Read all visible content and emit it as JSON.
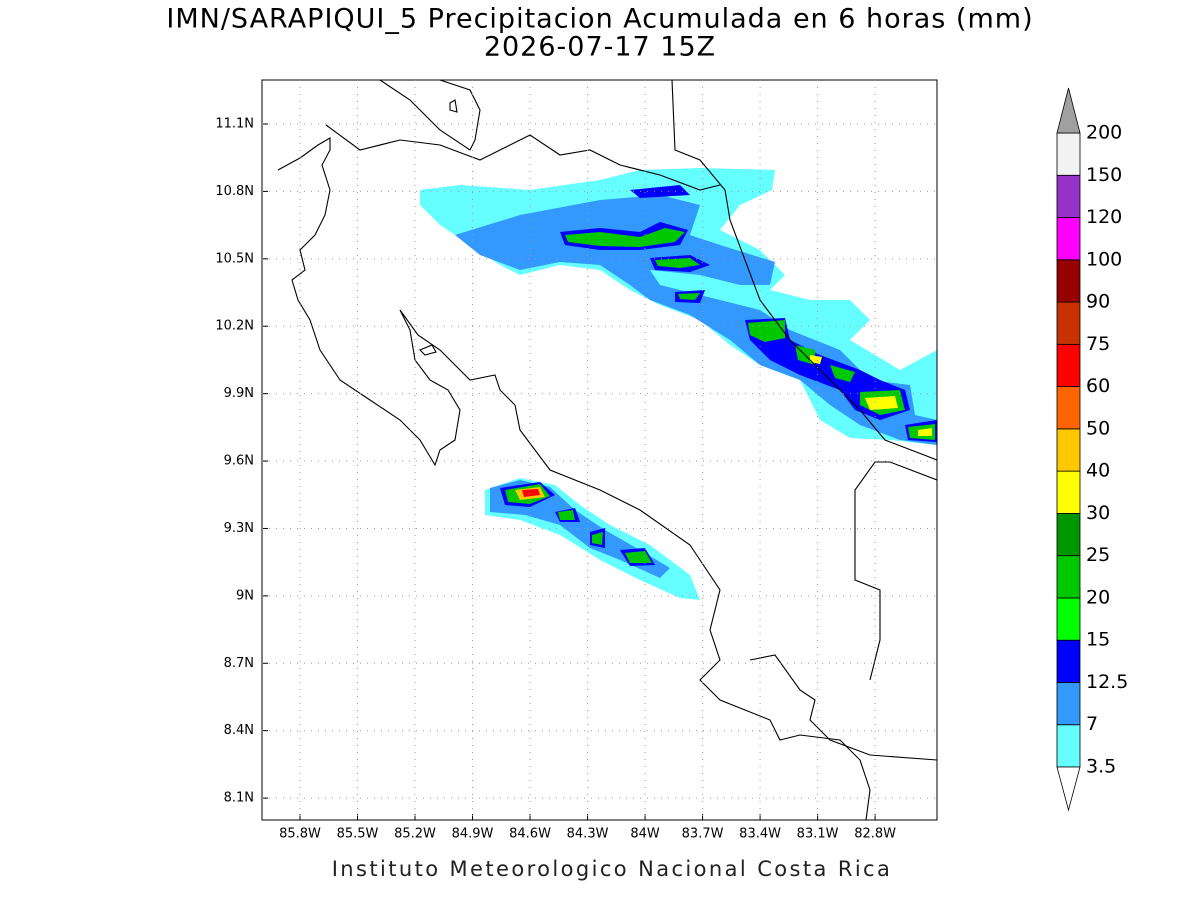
{
  "title": "IMN/SARAPIQUI_5 Precipitacion Acumulada en 6 horas (mm)",
  "subtitle": "2026-07-17 15Z",
  "footer": "Instituto Meteorologico Nacional Costa Rica",
  "map": {
    "lat_ticks": [
      {
        "value": 11.1,
        "label": "11.1N"
      },
      {
        "value": 10.8,
        "label": "10.8N"
      },
      {
        "value": 10.5,
        "label": "10.5N"
      },
      {
        "value": 10.2,
        "label": "10.2N"
      },
      {
        "value": 9.9,
        "label": "9.9N"
      },
      {
        "value": 9.6,
        "label": "9.6N"
      },
      {
        "value": 9.3,
        "label": "9.3N"
      },
      {
        "value": 9,
        "label": "9N"
      },
      {
        "value": 8.7,
        "label": "8.7N"
      },
      {
        "value": 8.4,
        "label": "8.4N"
      },
      {
        "value": 8.1,
        "label": "8.1N"
      }
    ],
    "lon_ticks": [
      {
        "value": -85.8,
        "label": "85.8W"
      },
      {
        "value": -85.5,
        "label": "85.5W"
      },
      {
        "value": -85.2,
        "label": "85.2W"
      },
      {
        "value": -84.9,
        "label": "84.9W"
      },
      {
        "value": -84.6,
        "label": "84.6W"
      },
      {
        "value": -84.3,
        "label": "84.3W"
      },
      {
        "value": -84,
        "label": "84W"
      },
      {
        "value": -83.7,
        "label": "83.7W"
      },
      {
        "value": -83.4,
        "label": "83.4W"
      },
      {
        "value": -83.1,
        "label": "83.1W"
      },
      {
        "value": -82.8,
        "label": "82.8W"
      }
    ],
    "grid": true
  },
  "colorbar": {
    "levels": [
      3.5,
      7,
      12.5,
      15,
      20,
      25,
      30,
      40,
      50,
      60,
      75,
      90,
      100,
      120,
      150,
      200
    ],
    "colors": [
      "#66ffff",
      "#3399ff",
      "#0000ff",
      "#00ff00",
      "#00c800",
      "#009600",
      "#ffff00",
      "#ffc800",
      "#ff6400",
      "#ff0000",
      "#c83200",
      "#960000",
      "#ff00ff",
      "#9632c8",
      "#f2f2f2"
    ],
    "below_color": "#ffffff",
    "above_color": "#a0a0a0"
  }
}
